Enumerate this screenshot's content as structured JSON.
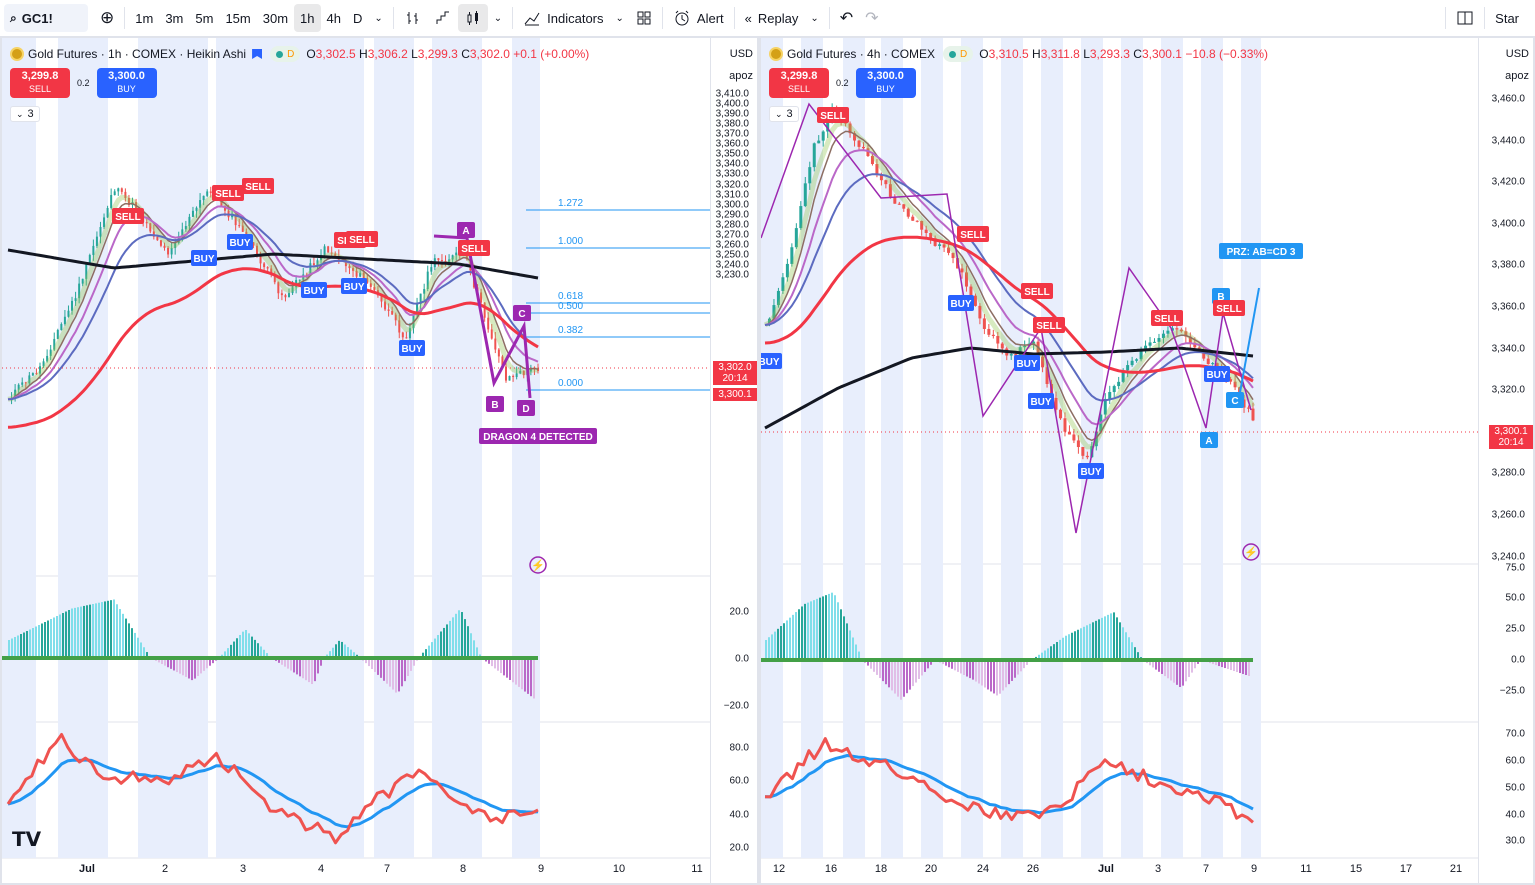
{
  "toolbar": {
    "symbol": "GC1!",
    "intervals": [
      "1m",
      "3m",
      "5m",
      "15m",
      "30m",
      "1h",
      "4h",
      "D"
    ],
    "active_interval": "1h",
    "indicators_label": "Indicators",
    "alert_label": "Alert",
    "replay_label": "Replay",
    "star_label": "Star"
  },
  "left_chart": {
    "title": "Gold Futures · 1h · COMEX · Heikin Ashi",
    "d_badge": "D",
    "ohlc": {
      "o_key": "O",
      "o": "3,302.5",
      "h_key": "H",
      "h": "3,306.2",
      "l_key": "L",
      "l": "3,299.3",
      "c_key": "C",
      "c": "3,302.0",
      "change": "+0.1 (+0.00%)"
    },
    "sell_price": "3,299.8",
    "sell_label": "SELL",
    "spread": "0.2",
    "buy_price": "3,300.0",
    "buy_label": "BUY",
    "indicator_count": "3",
    "currency": "USD",
    "scale_mode": "apoz",
    "price_axis": [
      "3,410.0",
      "3,400.0",
      "3,390.0",
      "3,380.0",
      "3,370.0",
      "3,360.0",
      "3,350.0",
      "3,340.0",
      "3,330.0",
      "3,320.0",
      "3,310.0",
      "3,300.0",
      "3,290.0",
      "3,280.0",
      "3,270.0",
      "3,260.0",
      "3,250.0",
      "3,240.0",
      "3,230.0"
    ],
    "price_tag": "3,302.0",
    "price_tag_time": "20:14",
    "price_tag_2": "3,300.1",
    "fib_levels": [
      "1.272",
      "1.000",
      "0.618",
      "0.500",
      "0.382",
      "0.000"
    ],
    "pattern_points": [
      "A",
      "B",
      "C",
      "D"
    ],
    "pattern_label": "DRAGON 4 DETECTED",
    "signal_labels": [
      "SELL",
      "SELL",
      "SELL",
      "BUY",
      "SELL",
      "SELL",
      "BUY",
      "BUY",
      "BUY",
      "BUY",
      "SELL"
    ],
    "osc_axis": [
      "20.0",
      "0.0",
      "−20.0"
    ],
    "rsi_axis": [
      "80.0",
      "60.0",
      "40.0",
      "20.0"
    ],
    "time_axis": [
      "Jul",
      "2",
      "3",
      "4",
      "7",
      "8",
      "9",
      "10",
      "11"
    ]
  },
  "right_chart": {
    "title": "Gold Futures · 4h · COMEX",
    "d_badge": "D",
    "ohlc": {
      "o_key": "O",
      "o": "3,310.5",
      "h_key": "H",
      "h": "3,311.8",
      "l_key": "L",
      "l": "3,293.3",
      "c_key": "C",
      "c": "3,300.1",
      "change": "−10.8 (−0.33%)"
    },
    "sell_price": "3,299.8",
    "sell_label": "SELL",
    "spread": "0.2",
    "buy_price": "3,300.0",
    "buy_label": "BUY",
    "indicator_count": "3",
    "currency": "USD",
    "scale_mode": "apoz",
    "price_axis": [
      "3,460.0",
      "3,440.0",
      "3,420.0",
      "3,400.0",
      "3,380.0",
      "3,360.0",
      "3,340.0",
      "3,320.0",
      "3,300.0",
      "3,280.0",
      "3,260.0",
      "3,240.0"
    ],
    "price_tag": "3,300.1",
    "price_tag_time": "20:14",
    "prz_label": "PRZ: AB=CD 3",
    "pattern_points": [
      "A",
      "B",
      "C"
    ],
    "signal_labels": [
      "SELL",
      "SELL",
      "SELL",
      "SELL",
      "SELL",
      "SELL",
      "BUY",
      "BUY",
      "BUY",
      "BUY",
      "BUY",
      "BUY"
    ],
    "osc_axis": [
      "75.0",
      "50.0",
      "25.0",
      "0.0",
      "−25.0"
    ],
    "rsi_axis": [
      "70.0",
      "60.0",
      "50.0",
      "40.0",
      "30.0"
    ],
    "time_axis": [
      "12",
      "16",
      "18",
      "20",
      "24",
      "26",
      "Jul",
      "3",
      "7",
      "9",
      "11",
      "15",
      "17",
      "21"
    ]
  },
  "colors": {
    "bull": "#26a69a",
    "bear": "#ef5350",
    "accent": "#2962ff",
    "sell": "#f23645",
    "pattern": "#9c27b0",
    "fib": "#2196f3",
    "ma_black": "#131722",
    "ma_red": "#f23645"
  }
}
